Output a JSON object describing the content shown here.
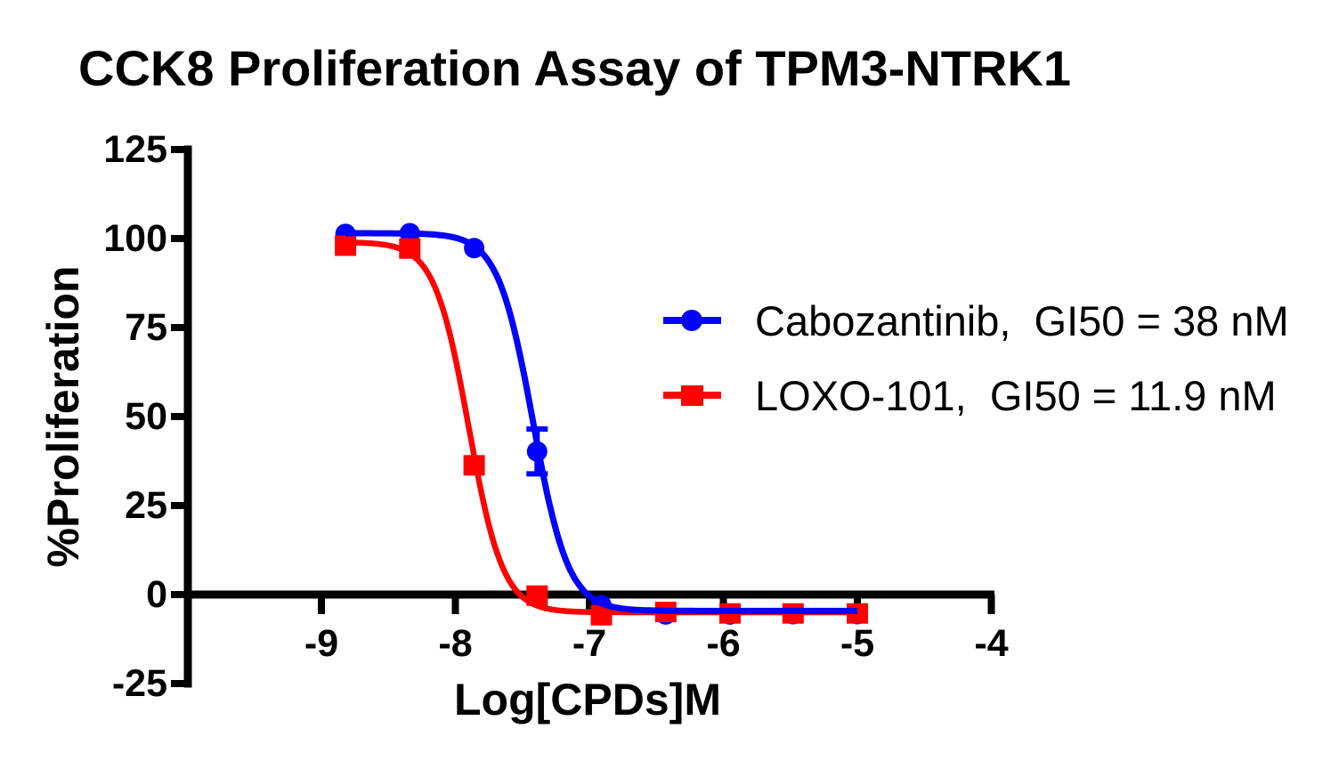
{
  "chart": {
    "title": "CCK8 Proliferation Assay of TPM3-NTRK1",
    "background_color": "#FFFFFF",
    "axis_color": "#000000",
    "text_color": "#000000"
  },
  "chart_data": {
    "type": "scatter",
    "subtype": "dose-response-curves-with-sigmoid-fit",
    "title": "CCK8 Proliferation Assay of TPM3-NTRK1",
    "xlabel": "Log[CPDs]M",
    "ylabel": "%Proliferation",
    "xlim": [
      -10,
      -4
    ],
    "ylim": [
      -25,
      125
    ],
    "x_ticks": [
      -9,
      -8,
      -7,
      -6,
      -5,
      -4
    ],
    "x_tick_labels": [
      "-9",
      "-8",
      "-7",
      "-6",
      "-5",
      "-4"
    ],
    "y_ticks": [
      125,
      100,
      75,
      50,
      25,
      0,
      -25
    ],
    "y_tick_labels": [
      "125",
      "100",
      "75",
      "50",
      "25",
      "0",
      "-25"
    ],
    "grid": false,
    "legend_position": "right-middle",
    "series": [
      {
        "name": "Cabozantinib",
        "legend_label": "Cabozantinib,  GI50 = 38 nM",
        "gi50_nM": 38,
        "color": "#0202FE",
        "marker": "circle",
        "x": [
          -8.82,
          -8.34,
          -7.86,
          -7.39,
          -6.91,
          -6.43,
          -5.95,
          -5.48,
          -5.0
        ],
        "y": [
          101.3,
          101.5,
          97.3,
          40.2,
          -3.0,
          -5.6,
          -5.6,
          -5.5,
          -5.5
        ],
        "error_bars": [
          {
            "x": -7.39,
            "y": 40.2,
            "plus": 6.3,
            "minus": 6.3
          }
        ],
        "fit": {
          "model": "four_param_logistic",
          "top": 101.5,
          "bottom": -4.6,
          "log_gi50": -7.42,
          "hill_slope": 3.3
        }
      },
      {
        "name": "LOXO-101",
        "legend_label": "LOXO-101,  GI50 = 11.9 nM",
        "gi50_nM": 11.9,
        "color": "#FE0202",
        "marker": "square",
        "x": [
          -8.82,
          -8.34,
          -7.86,
          -7.39,
          -6.91,
          -6.43,
          -5.95,
          -5.48,
          -5.0
        ],
        "y": [
          98.0,
          97.2,
          36.3,
          -0.3,
          -5.8,
          -4.9,
          -5.3,
          -5.3,
          -5.3
        ],
        "error_bars": [],
        "fit": {
          "model": "four_param_logistic",
          "top": 99.0,
          "bottom": -5.0,
          "log_gi50": -7.9,
          "hill_slope": 3.4
        }
      }
    ]
  }
}
